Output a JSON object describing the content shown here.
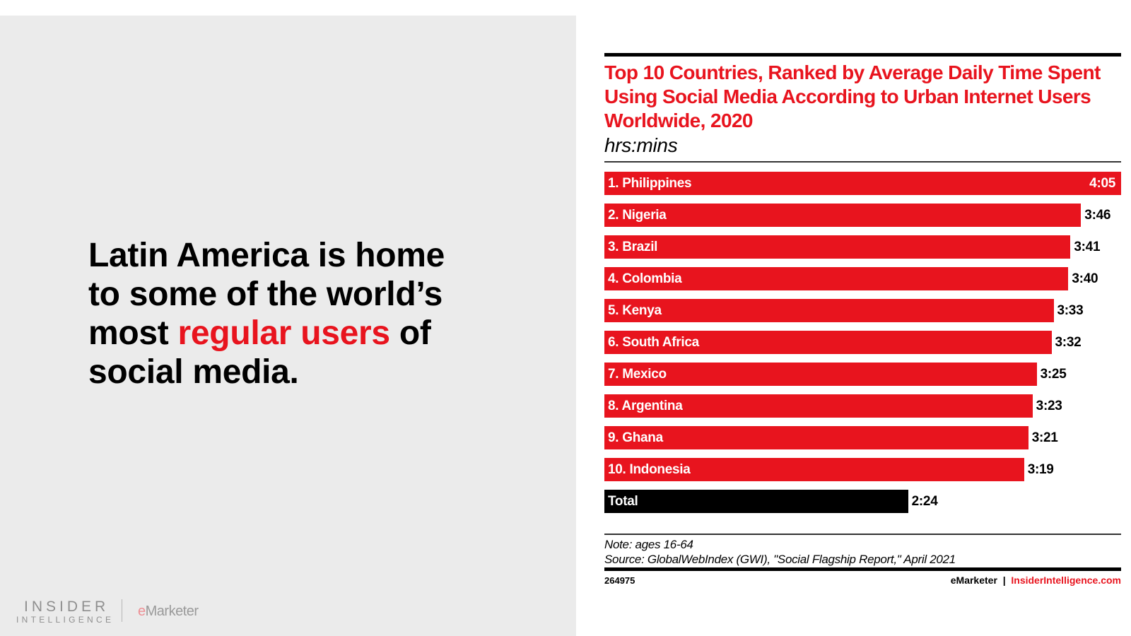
{
  "slide": {
    "headline_before": "Latin America is home to some of the world’s most ",
    "headline_highlight": "regular users",
    "headline_after": " of social media.",
    "highlight_color": "#e8141e",
    "logo_insider_line1": "INSIDER",
    "logo_insider_line2": "INTELLIGENCE",
    "logo_emarketer_e": "e",
    "logo_emarketer_rest": "Marketer"
  },
  "chart_data": {
    "type": "bar",
    "orientation": "horizontal",
    "title": "Top 10 Countries, Ranked by Average Daily Time Spent Using Social Media According to Urban Internet Users Worldwide, 2020",
    "subtitle": "hrs:mins",
    "categories": [
      "1. Philippines",
      "2. Nigeria",
      "3. Brazil",
      "4. Colombia",
      "5. Kenya",
      "6. South Africa",
      "7. Mexico",
      "8. Argentina",
      "9. Ghana",
      "10. Indonesia",
      "Total"
    ],
    "values": [
      "4:05",
      "3:46",
      "3:41",
      "3:40",
      "3:33",
      "3:32",
      "3:25",
      "3:23",
      "3:21",
      "3:19",
      "2:24"
    ],
    "bar_color": "#e8141e",
    "total_color": "#000000",
    "note": "Note: ages 16-64",
    "source": "Source: GlobalWebIndex (GWI), \"Social Flagship Report,\" April 2021",
    "chart_id": "264975",
    "credit_brand": "eMarketer",
    "credit_sep": "|",
    "credit_site": "InsiderIntelligence.com"
  }
}
